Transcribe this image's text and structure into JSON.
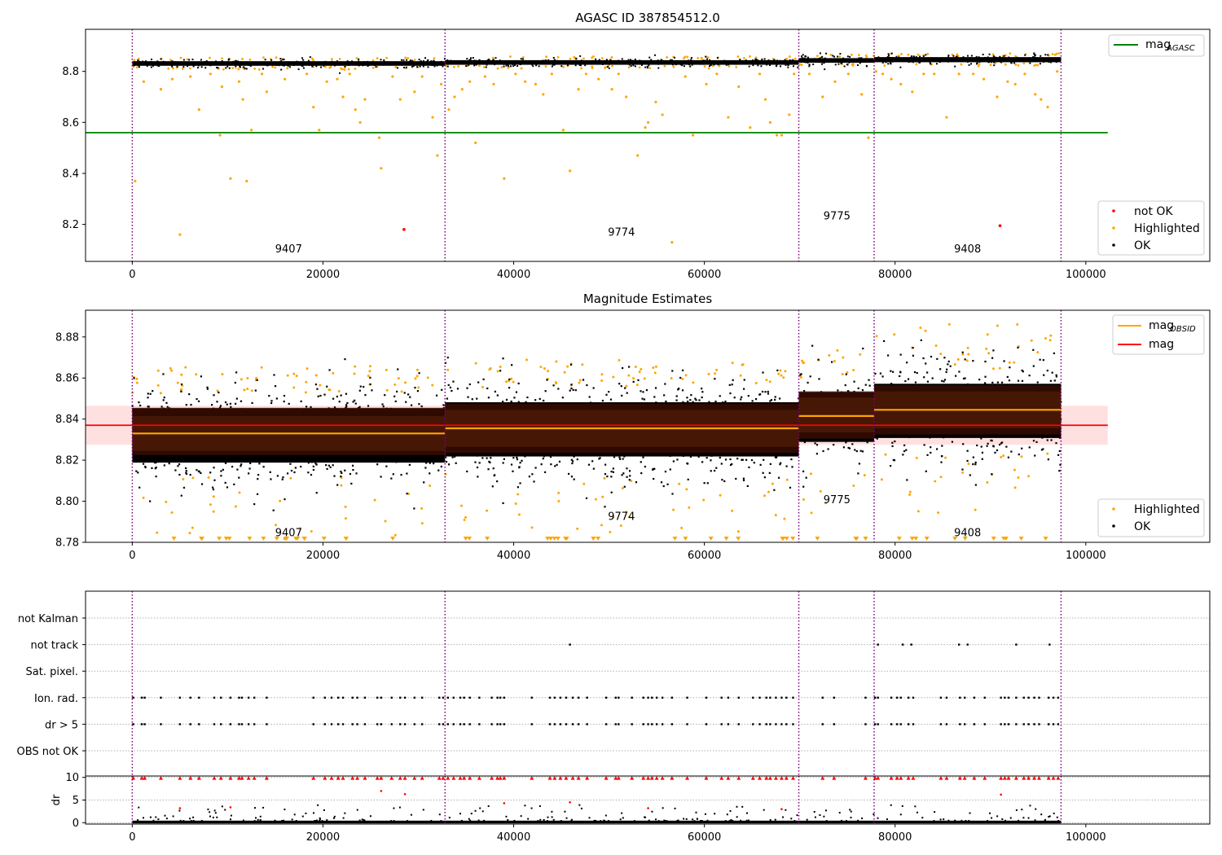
{
  "chart_data": [
    {
      "type": "scatter",
      "title": "AGASC ID 387854512.0",
      "xlim": [
        -4900,
        113000
      ],
      "ylim": [
        8.055,
        8.965
      ],
      "xticks": [
        0,
        20000,
        40000,
        60000,
        80000,
        100000
      ],
      "yticks": [
        8.2,
        8.4,
        8.6,
        8.8
      ],
      "grid": false,
      "obs_boundaries": [
        0,
        32800,
        69900,
        77800,
        97400
      ],
      "obs_labels": [
        {
          "text": "9407",
          "x": 16400,
          "y": 8.09
        },
        {
          "text": "9774",
          "x": 51300,
          "y": 8.155
        },
        {
          "text": "9775",
          "x": 73900,
          "y": 8.22
        },
        {
          "text": "9408",
          "x": 87600,
          "y": 8.09
        }
      ],
      "lines": [
        {
          "name": "mag_AGASC",
          "y": 8.56,
          "xrange": [
            -4900,
            102300
          ],
          "color": "#008000"
        }
      ],
      "ok_bands": [
        {
          "x": [
            0,
            32800
          ],
          "center": 8.831,
          "spread": 0.018
        },
        {
          "x": [
            32800,
            69900
          ],
          "center": 8.835,
          "spread": 0.018
        },
        {
          "x": [
            69900,
            77800
          ],
          "center": 8.843,
          "spread": 0.018
        },
        {
          "x": [
            77800,
            97400
          ],
          "center": 8.846,
          "spread": 0.02
        }
      ],
      "highlighted_points": [
        [
          300,
          8.37
        ],
        [
          1200,
          8.76
        ],
        [
          3000,
          8.73
        ],
        [
          4200,
          8.77
        ],
        [
          5000,
          8.16
        ],
        [
          6100,
          8.78
        ],
        [
          7000,
          8.65
        ],
        [
          8200,
          8.79
        ],
        [
          9200,
          8.55
        ],
        [
          9400,
          8.74
        ],
        [
          10300,
          8.38
        ],
        [
          11200,
          8.76
        ],
        [
          11600,
          8.69
        ],
        [
          12000,
          8.37
        ],
        [
          12500,
          8.57
        ],
        [
          13600,
          8.79
        ],
        [
          14100,
          8.72
        ],
        [
          16000,
          8.77
        ],
        [
          18300,
          8.79
        ],
        [
          19000,
          8.66
        ],
        [
          19600,
          8.57
        ],
        [
          20400,
          8.76
        ],
        [
          21500,
          8.77
        ],
        [
          22100,
          8.7
        ],
        [
          22800,
          8.79
        ],
        [
          23400,
          8.65
        ],
        [
          23900,
          8.6
        ],
        [
          24400,
          8.69
        ],
        [
          25900,
          8.54
        ],
        [
          26100,
          8.42
        ],
        [
          27300,
          8.78
        ],
        [
          28100,
          8.69
        ],
        [
          29600,
          8.72
        ],
        [
          30400,
          8.78
        ],
        [
          31500,
          8.62
        ],
        [
          32000,
          8.47
        ],
        [
          32400,
          8.75
        ],
        [
          33200,
          8.65
        ],
        [
          33800,
          8.7
        ],
        [
          34600,
          8.73
        ],
        [
          35400,
          8.76
        ],
        [
          36000,
          8.52
        ],
        [
          37000,
          8.78
        ],
        [
          37900,
          8.75
        ],
        [
          39000,
          8.38
        ],
        [
          40200,
          8.79
        ],
        [
          41200,
          8.76
        ],
        [
          42300,
          8.75
        ],
        [
          43100,
          8.71
        ],
        [
          44000,
          8.79
        ],
        [
          45200,
          8.57
        ],
        [
          45900,
          8.41
        ],
        [
          46800,
          8.73
        ],
        [
          47600,
          8.79
        ],
        [
          48900,
          8.77
        ],
        [
          50300,
          8.73
        ],
        [
          51000,
          8.79
        ],
        [
          51800,
          8.7
        ],
        [
          53000,
          8.47
        ],
        [
          53800,
          8.58
        ],
        [
          54100,
          8.6
        ],
        [
          54900,
          8.68
        ],
        [
          55600,
          8.63
        ],
        [
          56600,
          8.13
        ],
        [
          58000,
          8.78
        ],
        [
          58800,
          8.55
        ],
        [
          60200,
          8.75
        ],
        [
          61300,
          8.79
        ],
        [
          62500,
          8.62
        ],
        [
          63600,
          8.74
        ],
        [
          64800,
          8.58
        ],
        [
          65800,
          8.79
        ],
        [
          66400,
          8.69
        ],
        [
          66900,
          8.6
        ],
        [
          67600,
          8.55
        ],
        [
          68100,
          8.55
        ],
        [
          68900,
          8.63
        ],
        [
          69400,
          8.79
        ],
        [
          71000,
          8.79
        ],
        [
          72400,
          8.7
        ],
        [
          73700,
          8.76
        ],
        [
          75100,
          8.79
        ],
        [
          76500,
          8.71
        ],
        [
          77200,
          8.54
        ],
        [
          78000,
          8.8
        ],
        [
          78700,
          8.79
        ],
        [
          79600,
          8.77
        ],
        [
          80600,
          8.75
        ],
        [
          81800,
          8.72
        ],
        [
          83000,
          8.79
        ],
        [
          84100,
          8.79
        ],
        [
          85400,
          8.62
        ],
        [
          86700,
          8.79
        ],
        [
          88200,
          8.79
        ],
        [
          89300,
          8.77
        ],
        [
          90700,
          8.7
        ],
        [
          91800,
          8.76
        ],
        [
          92600,
          8.75
        ],
        [
          93600,
          8.79
        ],
        [
          94700,
          8.71
        ],
        [
          95300,
          8.69
        ],
        [
          96000,
          8.66
        ],
        [
          97000,
          8.8
        ]
      ],
      "not_ok_points": [
        [
          28500,
          8.18
        ],
        [
          91000,
          8.195
        ]
      ],
      "legend_lines": [
        {
          "label": "mag",
          "sub": "AGASC",
          "color": "#008000"
        }
      ],
      "legend_points": [
        {
          "label": "not OK",
          "color": "#ff0000"
        },
        {
          "label": "Highlighted",
          "color": "#ffa500"
        },
        {
          "label": "OK",
          "color": "#000000"
        }
      ],
      "legend_lines_placement": "upper right",
      "legend_points_placement": "lower right"
    },
    {
      "type": "scatter",
      "title": "Magnitude Estimates",
      "xlim": [
        -4900,
        113000
      ],
      "ylim": [
        8.78,
        8.893
      ],
      "xticks": [
        0,
        20000,
        40000,
        60000,
        80000,
        100000
      ],
      "yticks": [
        8.78,
        8.8,
        8.82,
        8.84,
        8.86,
        8.88
      ],
      "grid": false,
      "obs_boundaries": [
        0,
        32800,
        69900,
        77800,
        97400
      ],
      "obs_labels": [
        {
          "text": "9407",
          "x": 16400,
          "y": 8.783
        },
        {
          "text": "9774",
          "x": 51300,
          "y": 8.791
        },
        {
          "text": "9775",
          "x": 73900,
          "y": 8.799
        },
        {
          "text": "9408",
          "x": 87600,
          "y": 8.783
        }
      ],
      "overall_mag": {
        "name": "mag",
        "value": 8.837,
        "band": [
          8.8275,
          8.8465
        ],
        "xrange": [
          -4900,
          102300
        ],
        "color": "#ff0000"
      },
      "obsid_mag": [
        {
          "x": [
            0,
            32800
          ],
          "value": 8.833,
          "inner": [
            8.8245,
            8.8415
          ],
          "outer": [
            8.8225,
            8.8455
          ]
        },
        {
          "x": [
            32800,
            69900
          ],
          "value": 8.8355,
          "inner": [
            8.8265,
            8.8445
          ],
          "outer": [
            8.8235,
            8.8475
          ]
        },
        {
          "x": [
            69900,
            77800
          ],
          "value": 8.8415,
          "inner": [
            8.8335,
            8.8505
          ],
          "outer": [
            8.8305,
            8.8535
          ]
        },
        {
          "x": [
            77800,
            97400
          ],
          "value": 8.8445,
          "inner": [
            8.8355,
            8.8535
          ],
          "outer": [
            8.8325,
            8.8565
          ]
        }
      ],
      "ok_bands": [
        {
          "x": [
            0,
            32800
          ],
          "center": 8.832,
          "spread": 0.024
        },
        {
          "x": [
            32800,
            69900
          ],
          "center": 8.835,
          "spread": 0.024
        },
        {
          "x": [
            69900,
            77800
          ],
          "center": 8.841,
          "spread": 0.022
        },
        {
          "x": [
            77800,
            97400
          ],
          "center": 8.844,
          "spread": 0.024
        }
      ],
      "legend_lines": [
        {
          "label": "mag",
          "sub": "OBSID",
          "color": "#ffa500"
        },
        {
          "label": "mag",
          "sub": "",
          "color": "#ff0000"
        }
      ],
      "legend_points": [
        {
          "label": "Highlighted",
          "color": "#ffa500"
        },
        {
          "label": "OK",
          "color": "#000000"
        }
      ],
      "legend_lines_placement": "upper right",
      "legend_points_placement": "lower right"
    },
    {
      "type": "scatter",
      "title": "",
      "xlim": [
        -4900,
        113000
      ],
      "categories": [
        "not Kalman",
        "not track",
        "Sat. pixel.",
        "Ion. rad.",
        "dr > 5",
        "OBS not OK"
      ],
      "grid": true,
      "obs_boundaries": [
        0,
        32800,
        69900,
        77800,
        97400
      ],
      "flag_x": {
        "not track": [
          45900,
          78200,
          80800,
          81700,
          86700,
          87600,
          92700,
          96200
        ],
        "Ion. rad.": [
          100,
          1000,
          1300,
          3000,
          5000,
          6100,
          7000,
          8600,
          9300,
          10300,
          11200,
          11500,
          12200,
          12800,
          14100,
          19000,
          20200,
          20900,
          21600,
          22100,
          23100,
          23600,
          24400,
          25700,
          26100,
          27200,
          28100,
          28600,
          29600,
          30400,
          32200,
          32600,
          33100,
          33700,
          34400,
          34800,
          35400,
          36400,
          37700,
          38300,
          38600,
          39000,
          41900,
          43800,
          44300,
          44900,
          45500,
          46200,
          46800,
          47700,
          49700,
          50700,
          51000,
          52400,
          53600,
          54100,
          54500,
          55000,
          55600,
          56600,
          58200,
          60200,
          61800,
          62500,
          63600,
          65100,
          65800,
          66500,
          66900,
          67500,
          68100,
          68600,
          69300,
          72400,
          73600,
          76900,
          77900,
          78200,
          79600,
          80200,
          80600,
          81400,
          81900,
          84800,
          85400,
          86800,
          87300,
          88300,
          89400,
          91100,
          91500,
          91900,
          92700,
          93500,
          94000,
          94600,
          95100,
          96100,
          96600,
          97100
        ],
        "dr > 5": [
          100,
          1000,
          1300,
          3000,
          5000,
          6100,
          7000,
          8600,
          9300,
          10300,
          11200,
          11500,
          12200,
          12800,
          14100,
          19000,
          20200,
          20900,
          21600,
          22100,
          23100,
          23600,
          24400,
          25700,
          26100,
          27200,
          28100,
          28600,
          29600,
          30400,
          32200,
          32600,
          33100,
          33700,
          34400,
          34800,
          35400,
          36400,
          37700,
          38300,
          38600,
          39000,
          41900,
          43800,
          44300,
          44900,
          45500,
          46200,
          46800,
          47700,
          49700,
          50700,
          51000,
          52400,
          53600,
          54100,
          54500,
          55000,
          55600,
          56600,
          58200,
          60200,
          61800,
          62500,
          63600,
          65100,
          65800,
          66500,
          66900,
          67500,
          68100,
          68600,
          69300,
          72400,
          73600,
          76900,
          77900,
          78200,
          79600,
          80200,
          80600,
          81400,
          81900,
          84800,
          85400,
          86800,
          87300,
          88300,
          89400,
          91100,
          91500,
          91900,
          92700,
          93500,
          94000,
          94600,
          95100,
          96100,
          96600,
          97100
        ]
      }
    },
    {
      "type": "scatter",
      "title": "",
      "xlim": [
        -4900,
        113000
      ],
      "ylim": [
        -0.3,
        10.3
      ],
      "ylabel": "dr",
      "yticks": [
        0,
        5,
        10
      ],
      "xticks": [
        0,
        20000,
        40000,
        60000,
        80000,
        100000
      ],
      "grid": true,
      "obs_boundaries": [
        0,
        32800,
        69900,
        77800,
        97400
      ],
      "red_points": [
        [
          5000,
          3.2
        ],
        [
          10300,
          3.4
        ],
        [
          26100,
          7.0
        ],
        [
          28600,
          6.3
        ],
        [
          39000,
          4.3
        ],
        [
          45900,
          4.5
        ],
        [
          54100,
          3.2
        ],
        [
          68100,
          3.0
        ],
        [
          91100,
          6.2
        ]
      ]
    }
  ]
}
